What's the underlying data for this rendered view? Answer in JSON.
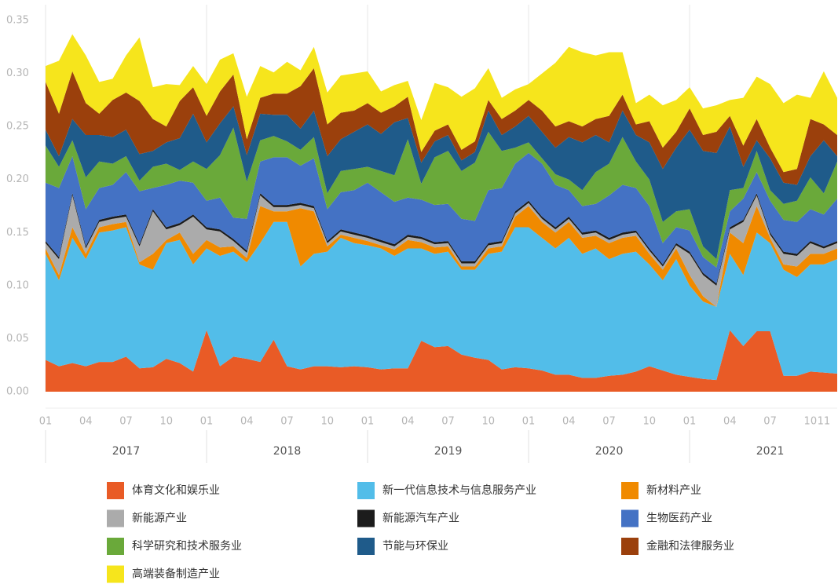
{
  "chart_data": {
    "type": "stacked_area",
    "categories": [
      "01",
      null,
      null,
      "04",
      null,
      null,
      "07",
      null,
      null,
      "10",
      null,
      null,
      "01",
      null,
      null,
      "04",
      null,
      null,
      "07",
      null,
      null,
      "10",
      null,
      null,
      "01",
      null,
      null,
      "04",
      null,
      null,
      "07",
      null,
      null,
      "10",
      null,
      null,
      "01",
      null,
      null,
      "04",
      null,
      null,
      "07",
      null,
      null,
      "10",
      null,
      null,
      "01",
      null,
      null,
      "04",
      null,
      null,
      "07",
      null,
      null,
      "10",
      "11",
      null
    ],
    "years": [
      "2017",
      "2018",
      "2019",
      "2020",
      "2021"
    ],
    "ylim": [
      0,
      0.35
    ],
    "yticks": [
      {
        "value": 0,
        "label": "0.00"
      },
      {
        "value": 0.05,
        "label": "0.05"
      },
      {
        "value": 0.1,
        "label": "0.10"
      },
      {
        "value": 0.15,
        "label": "0.15"
      },
      {
        "value": 0.2,
        "label": "0.20"
      },
      {
        "value": 0.25,
        "label": "0.25"
      },
      {
        "value": 0.3,
        "label": "0.30"
      },
      {
        "value": 0.35,
        "label": "0.35"
      }
    ],
    "series": [
      {
        "name": "体育文化和娱乐业",
        "color": "#e95b26",
        "values": [
          0.03,
          0.024,
          0.027,
          0.024,
          0.028,
          0.028,
          0.033,
          0.022,
          0.023,
          0.031,
          0.027,
          0.019,
          0.058,
          0.024,
          0.033,
          0.031,
          0.028,
          0.049,
          0.024,
          0.021,
          0.024,
          0.024,
          0.023,
          0.024,
          0.023,
          0.021,
          0.022,
          0.022,
          0.048,
          0.042,
          0.043,
          0.035,
          0.032,
          0.03,
          0.021,
          0.023,
          0.022,
          0.02,
          0.016,
          0.016,
          0.013,
          0.013,
          0.015,
          0.016,
          0.019,
          0.024,
          0.02,
          0.016,
          0.014,
          0.012,
          0.011,
          0.058,
          0.043,
          0.057,
          0.057,
          0.015,
          0.015,
          0.019,
          0.018,
          0.017
        ]
      },
      {
        "name": "新一代信息技术与信息服务产业",
        "color": "#52bde9",
        "values": [
          0.1,
          0.081,
          0.118,
          0.101,
          0.122,
          0.124,
          0.122,
          0.098,
          0.092,
          0.109,
          0.116,
          0.101,
          0.077,
          0.104,
          0.099,
          0.091,
          0.112,
          0.111,
          0.136,
          0.097,
          0.106,
          0.108,
          0.122,
          0.116,
          0.115,
          0.114,
          0.106,
          0.113,
          0.087,
          0.088,
          0.089,
          0.08,
          0.083,
          0.1,
          0.111,
          0.132,
          0.133,
          0.125,
          0.119,
          0.129,
          0.117,
          0.122,
          0.11,
          0.114,
          0.113,
          0.096,
          0.085,
          0.109,
          0.086,
          0.073,
          0.069,
          0.072,
          0.067,
          0.093,
          0.083,
          0.1,
          0.093,
          0.101,
          0.102,
          0.108
        ]
      },
      {
        "name": "新材料产业",
        "color": "#f08a00",
        "values": [
          0.005,
          0.005,
          0.01,
          0.005,
          0.005,
          0.006,
          0.005,
          0.002,
          0.015,
          0.003,
          0.007,
          0.01,
          0.008,
          0.008,
          0.005,
          0.004,
          0.035,
          0.01,
          0.01,
          0.055,
          0.04,
          0.005,
          0.003,
          0.005,
          0.004,
          0.003,
          0.006,
          0.008,
          0.006,
          0.006,
          0.005,
          0.003,
          0.003,
          0.005,
          0.005,
          0.01,
          0.02,
          0.015,
          0.015,
          0.015,
          0.015,
          0.012,
          0.015,
          0.015,
          0.015,
          0.01,
          0.01,
          0.01,
          0.01,
          0.005,
          0.0,
          0.02,
          0.03,
          0.025,
          0.005,
          0.005,
          0.01,
          0.01,
          0.01,
          0.01
        ]
      },
      {
        "name": "新能源产业",
        "color": "#ababab",
        "values": [
          0.005,
          0.015,
          0.03,
          0.005,
          0.005,
          0.005,
          0.005,
          0.015,
          0.04,
          0.01,
          0.007,
          0.035,
          0.01,
          0.015,
          0.005,
          0.005,
          0.01,
          0.004,
          0.004,
          0.003,
          0.003,
          0.003,
          0.003,
          0.003,
          0.003,
          0.003,
          0.003,
          0.003,
          0.003,
          0.003,
          0.003,
          0.003,
          0.003,
          0.003,
          0.003,
          0.003,
          0.003,
          0.003,
          0.003,
          0.003,
          0.003,
          0.003,
          0.003,
          0.003,
          0.003,
          0.003,
          0.003,
          0.003,
          0.02,
          0.02,
          0.02,
          0.003,
          0.02,
          0.01,
          0.003,
          0.01,
          0.01,
          0.01,
          0.005,
          0.005
        ]
      },
      {
        "name": "新能源汽车产业",
        "color": "#1c1c1c",
        "values": [
          0.002,
          0.002,
          0.002,
          0.002,
          0.002,
          0.002,
          0.002,
          0.002,
          0.002,
          0.002,
          0.002,
          0.002,
          0.002,
          0.002,
          0.002,
          0.002,
          0.002,
          0.002,
          0.002,
          0.002,
          0.002,
          0.002,
          0.002,
          0.002,
          0.002,
          0.002,
          0.002,
          0.002,
          0.002,
          0.002,
          0.002,
          0.002,
          0.002,
          0.002,
          0.002,
          0.002,
          0.002,
          0.002,
          0.002,
          0.002,
          0.002,
          0.002,
          0.002,
          0.002,
          0.002,
          0.002,
          0.002,
          0.002,
          0.002,
          0.002,
          0.002,
          0.002,
          0.002,
          0.002,
          0.002,
          0.002,
          0.002,
          0.002,
          0.002,
          0.002
        ]
      },
      {
        "name": "生物医药产业",
        "color": "#4472c4",
        "values": [
          0.055,
          0.065,
          0.035,
          0.035,
          0.03,
          0.03,
          0.04,
          0.05,
          0.02,
          0.04,
          0.04,
          0.03,
          0.025,
          0.03,
          0.02,
          0.03,
          0.03,
          0.045,
          0.045,
          0.035,
          0.045,
          0.03,
          0.035,
          0.04,
          0.05,
          0.045,
          0.04,
          0.035,
          0.035,
          0.035,
          0.035,
          0.04,
          0.038,
          0.05,
          0.05,
          0.045,
          0.045,
          0.05,
          0.04,
          0.025,
          0.025,
          0.025,
          0.04,
          0.045,
          0.04,
          0.04,
          0.02,
          0.015,
          0.02,
          0.015,
          0.015,
          0.015,
          0.02,
          0.02,
          0.03,
          0.03,
          0.03,
          0.03,
          0.03,
          0.04
        ]
      },
      {
        "name": "科学研究和技术服务业",
        "color": "#6aa93a",
        "values": [
          0.035,
          0.02,
          0.015,
          0.03,
          0.025,
          0.02,
          0.015,
          0.01,
          0.02,
          0.02,
          0.01,
          0.02,
          0.03,
          0.04,
          0.085,
          0.035,
          0.02,
          0.02,
          0.015,
          0.015,
          0.02,
          0.015,
          0.02,
          0.02,
          0.015,
          0.02,
          0.025,
          0.055,
          0.015,
          0.045,
          0.05,
          0.045,
          0.055,
          0.055,
          0.035,
          0.015,
          0.01,
          0.005,
          0.01,
          0.01,
          0.015,
          0.03,
          0.03,
          0.045,
          0.025,
          0.025,
          0.02,
          0.015,
          0.02,
          0.01,
          0.008,
          0.02,
          0.01,
          0.02,
          0.01,
          0.015,
          0.02,
          0.03,
          0.02,
          0.035
        ]
      },
      {
        "name": "节能与环保业",
        "color": "#1f5b8a",
        "values": [
          0.015,
          0.01,
          0.02,
          0.04,
          0.025,
          0.025,
          0.025,
          0.025,
          0.015,
          0.02,
          0.03,
          0.045,
          0.025,
          0.03,
          0.02,
          0.025,
          0.025,
          0.02,
          0.025,
          0.02,
          0.025,
          0.035,
          0.03,
          0.035,
          0.04,
          0.035,
          0.05,
          0.02,
          0.02,
          0.015,
          0.015,
          0.01,
          0.01,
          0.02,
          0.015,
          0.02,
          0.025,
          0.025,
          0.025,
          0.04,
          0.045,
          0.035,
          0.02,
          0.025,
          0.025,
          0.035,
          0.05,
          0.06,
          0.075,
          0.09,
          0.1,
          0.06,
          0.02,
          0.01,
          0.03,
          0.02,
          0.015,
          0.02,
          0.05,
          0.005
        ]
      },
      {
        "name": "金融和法律服务业",
        "color": "#9b400c",
        "values": [
          0.045,
          0.04,
          0.045,
          0.03,
          0.02,
          0.035,
          0.035,
          0.05,
          0.03,
          0.015,
          0.035,
          0.025,
          0.025,
          0.03,
          0.03,
          0.015,
          0.015,
          0.02,
          0.02,
          0.04,
          0.04,
          0.03,
          0.025,
          0.02,
          0.02,
          0.02,
          0.015,
          0.02,
          0.01,
          0.01,
          0.01,
          0.01,
          0.01,
          0.01,
          0.015,
          0.015,
          0.015,
          0.02,
          0.02,
          0.015,
          0.015,
          0.015,
          0.025,
          0.015,
          0.01,
          0.02,
          0.02,
          0.015,
          0.02,
          0.015,
          0.02,
          0.01,
          0.02,
          0.02,
          0.01,
          0.01,
          0.015,
          0.035,
          0.015,
          0.02
        ]
      },
      {
        "name": "高端装备制造产业",
        "color": "#f6e51c",
        "values": [
          0.015,
          0.05,
          0.035,
          0.045,
          0.03,
          0.02,
          0.035,
          0.06,
          0.03,
          0.04,
          0.015,
          0.02,
          0.03,
          0.03,
          0.02,
          0.04,
          0.03,
          0.02,
          0.03,
          0.015,
          0.02,
          0.03,
          0.035,
          0.035,
          0.03,
          0.02,
          0.02,
          0.015,
          0.03,
          0.045,
          0.035,
          0.05,
          0.05,
          0.03,
          0.02,
          0.02,
          0.015,
          0.035,
          0.06,
          0.07,
          0.07,
          0.06,
          0.06,
          0.04,
          0.02,
          0.025,
          0.04,
          0.03,
          0.02,
          0.025,
          0.025,
          0.015,
          0.045,
          0.04,
          0.06,
          0.065,
          0.07,
          0.02,
          0.05,
          0.035
        ]
      }
    ]
  }
}
